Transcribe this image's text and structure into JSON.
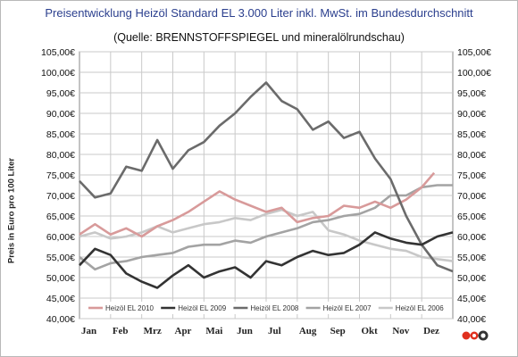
{
  "header": {
    "title": "Preisentwicklung  Heizöl  Standard EL 3.000 Liter inkl. MwSt. im Bundesdurchschnitt",
    "subtitle": "(Quelle: BRENNSTOFFSPIEGEL und mineralölrundschau)"
  },
  "chart_data": {
    "type": "line",
    "ylabel": "Preis in Euro pro 100 Liter",
    "ylim": [
      40,
      105
    ],
    "y_ticks": [
      "40,00€",
      "45,00€",
      "50,00€",
      "55,00€",
      "60,00€",
      "65,00€",
      "70,00€",
      "75,00€",
      "80,00€",
      "85,00€",
      "90,00€",
      "95,00€",
      "100,00€",
      "105,00€"
    ],
    "categories": [
      "Jan",
      "Feb",
      "Mrz",
      "Apr",
      "Mai",
      "Jun",
      "Jul",
      "Aug",
      "Sep",
      "Okt",
      "Nov",
      "Dez"
    ],
    "grid": true,
    "legend_position": "bottom-inside",
    "series": [
      {
        "name": "Heizöl EL 2010",
        "color": "#d89a9a",
        "x": [
          0,
          0.5,
          1,
          1.5,
          2,
          2.5,
          3,
          3.5,
          4,
          4.5,
          5,
          5.5,
          6,
          6.5,
          7,
          7.5,
          8,
          8.5,
          9,
          9.5,
          10,
          10.5,
          11,
          11.4
        ],
        "values": [
          60.5,
          63,
          60.5,
          62,
          60,
          62.5,
          64,
          66,
          68.5,
          71,
          69,
          67.5,
          66,
          67,
          63.5,
          64.5,
          65,
          67.5,
          67,
          68.5,
          67,
          69,
          72,
          75.5
        ]
      },
      {
        "name": "Heizöl EL 2009",
        "color": "#333333",
        "x": [
          0,
          0.5,
          1,
          1.5,
          2,
          2.5,
          3,
          3.5,
          4,
          4.5,
          5,
          5.5,
          6,
          6.5,
          7,
          7.5,
          8,
          8.5,
          9,
          9.5,
          10,
          10.5,
          11,
          11.5,
          12
        ],
        "values": [
          53,
          57,
          55.5,
          51,
          49,
          47.5,
          50.5,
          53,
          50,
          51.5,
          52.5,
          50,
          54,
          53,
          55,
          56.5,
          55.5,
          56,
          58,
          61,
          59.5,
          58.5,
          58,
          60,
          61
        ]
      },
      {
        "name": "Heizöl EL 2008",
        "color": "#6b6b6b",
        "x": [
          0,
          0.5,
          1,
          1.5,
          2,
          2.5,
          3,
          3.5,
          4,
          4.5,
          5,
          5.5,
          6,
          6.5,
          7,
          7.5,
          8,
          8.5,
          9,
          9.5,
          10,
          10.5,
          11,
          11.5,
          12
        ],
        "values": [
          73.5,
          69.5,
          70.5,
          77,
          76,
          83.5,
          76.5,
          81,
          83,
          87,
          90,
          94,
          97.5,
          93,
          91,
          86,
          88,
          84,
          85.5,
          79,
          74,
          65,
          58,
          53,
          51.5
        ]
      },
      {
        "name": "Heizöl EL 2007",
        "color": "#a3a3a3",
        "x": [
          0,
          0.5,
          1,
          1.5,
          2,
          2.5,
          3,
          3.5,
          4,
          4.5,
          5,
          5.5,
          6,
          6.5,
          7,
          7.5,
          8,
          8.5,
          9,
          9.5,
          10,
          10.5,
          11,
          11.5,
          12
        ],
        "values": [
          55,
          52,
          53.5,
          54,
          55,
          55.5,
          56,
          57.5,
          58,
          58,
          59,
          58.5,
          60,
          61,
          62,
          63.5,
          64,
          65,
          65.5,
          67,
          70,
          70,
          72,
          72.5,
          72.5
        ]
      },
      {
        "name": "Heizöl EL 2006",
        "color": "#c8c8c8",
        "x": [
          0,
          0.5,
          1,
          1.5,
          2,
          2.5,
          3,
          3.5,
          4,
          4.5,
          5,
          5.5,
          6,
          6.5,
          7,
          7.5,
          8,
          8.5,
          9,
          9.5,
          10,
          10.5,
          11,
          11.5,
          12
        ],
        "values": [
          60,
          61,
          59.5,
          60,
          61,
          62.5,
          61,
          62,
          63,
          63.5,
          64.5,
          64,
          65.5,
          66.5,
          65,
          66,
          61.5,
          60.5,
          59,
          58,
          57,
          56.5,
          55,
          54.5,
          54
        ]
      }
    ]
  },
  "logo": {
    "icon": "brennstoffspiegel-logo-icon"
  }
}
